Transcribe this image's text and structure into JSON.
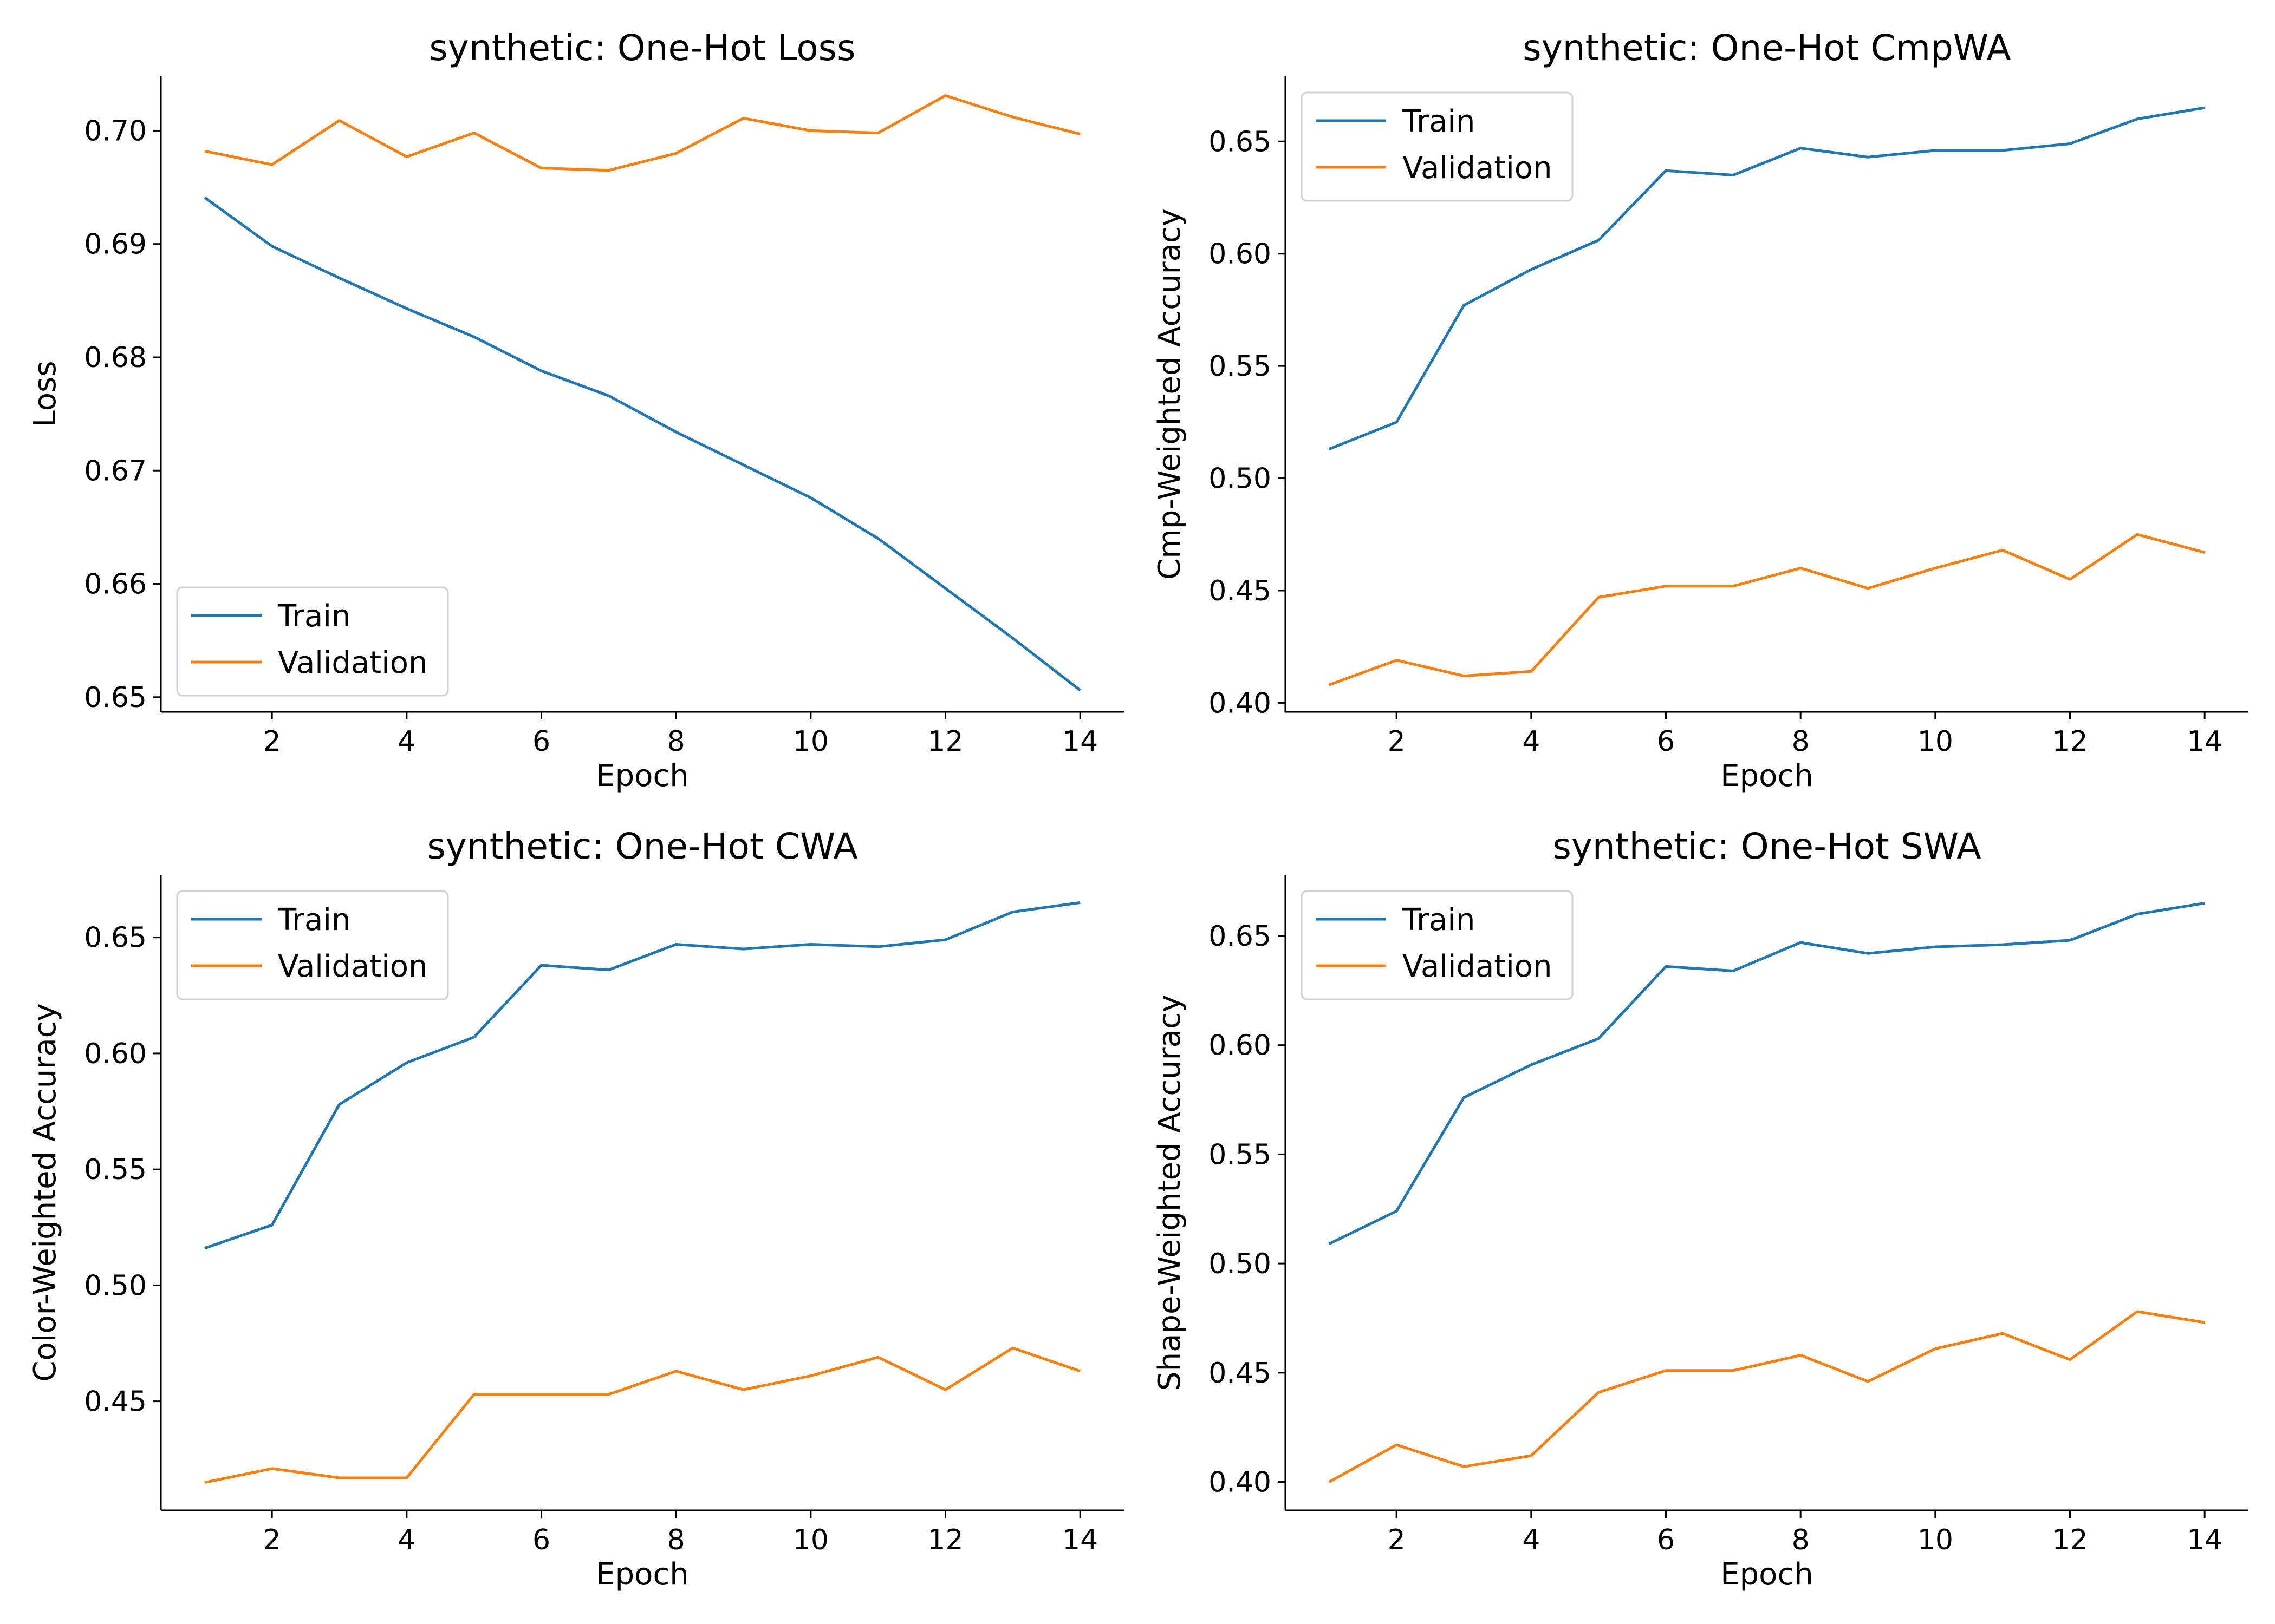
{
  "colors": {
    "train": "#1f77b4",
    "validation": "#ff7f0e"
  },
  "chart_data": [
    {
      "type": "line",
      "title": "synthetic: One-Hot Loss",
      "xlabel": "Epoch",
      "ylabel": "Loss",
      "x": [
        1,
        2,
        3,
        4,
        5,
        6,
        7,
        8,
        9,
        10,
        11,
        12,
        13,
        14
      ],
      "xlim": [
        0.35,
        14.65
      ],
      "ylim": [
        0.6487,
        0.7048
      ],
      "xticks": [
        2,
        4,
        6,
        8,
        10,
        12,
        14
      ],
      "xtick_labels": [
        "2",
        "4",
        "6",
        "8",
        "10",
        "12",
        "14"
      ],
      "yticks": [
        0.65,
        0.66,
        0.67,
        0.68,
        0.69,
        0.7
      ],
      "ytick_labels": [
        "0.65",
        "0.66",
        "0.67",
        "0.68",
        "0.69",
        "0.70"
      ],
      "legend_position": "lower-left",
      "series": [
        {
          "name": "Train",
          "color": "#1f77b4",
          "values": [
            0.6941,
            0.6898,
            0.687,
            0.6843,
            0.6818,
            0.6788,
            0.6766,
            0.6734,
            0.6705,
            0.6676,
            0.664,
            0.6596,
            0.6552,
            0.6506
          ]
        },
        {
          "name": "Validation",
          "color": "#ff7f0e",
          "values": [
            0.6982,
            0.697,
            0.7009,
            0.6977,
            0.6998,
            0.6967,
            0.6965,
            0.698,
            0.7011,
            0.7,
            0.6998,
            0.7031,
            0.7012,
            0.6997
          ]
        }
      ]
    },
    {
      "type": "line",
      "title": "synthetic: One-Hot CmpWA",
      "xlabel": "Epoch",
      "ylabel": "Cmp-Weighted Accuracy",
      "x": [
        1,
        2,
        3,
        4,
        5,
        6,
        7,
        8,
        9,
        10,
        11,
        12,
        13,
        14
      ],
      "xlim": [
        0.35,
        14.65
      ],
      "ylim": [
        0.396,
        0.679
      ],
      "xticks": [
        2,
        4,
        6,
        8,
        10,
        12,
        14
      ],
      "xtick_labels": [
        "2",
        "4",
        "6",
        "8",
        "10",
        "12",
        "14"
      ],
      "yticks": [
        0.4,
        0.45,
        0.5,
        0.55,
        0.6,
        0.65
      ],
      "ytick_labels": [
        "0.40",
        "0.45",
        "0.50",
        "0.55",
        "0.60",
        "0.65"
      ],
      "legend_position": "upper-left",
      "series": [
        {
          "name": "Train",
          "color": "#1f77b4",
          "values": [
            0.513,
            0.525,
            0.577,
            0.593,
            0.606,
            0.637,
            0.635,
            0.647,
            0.643,
            0.646,
            0.646,
            0.649,
            0.66,
            0.665
          ]
        },
        {
          "name": "Validation",
          "color": "#ff7f0e",
          "values": [
            0.408,
            0.419,
            0.412,
            0.414,
            0.447,
            0.452,
            0.452,
            0.46,
            0.451,
            0.46,
            0.468,
            0.455,
            0.475,
            0.467
          ]
        }
      ]
    },
    {
      "type": "line",
      "title": "synthetic: One-Hot CWA",
      "xlabel": "Epoch",
      "ylabel": "Color-Weighted Accuracy",
      "x": [
        1,
        2,
        3,
        4,
        5,
        6,
        7,
        8,
        9,
        10,
        11,
        12,
        13,
        14
      ],
      "xlim": [
        0.35,
        14.65
      ],
      "ylim": [
        0.403,
        0.677
      ],
      "xticks": [
        2,
        4,
        6,
        8,
        10,
        12,
        14
      ],
      "xtick_labels": [
        "2",
        "4",
        "6",
        "8",
        "10",
        "12",
        "14"
      ],
      "yticks": [
        0.45,
        0.5,
        0.55,
        0.6,
        0.65
      ],
      "ytick_labels": [
        "0.45",
        "0.50",
        "0.55",
        "0.60",
        "0.65"
      ],
      "legend_position": "upper-left",
      "series": [
        {
          "name": "Train",
          "color": "#1f77b4",
          "values": [
            0.516,
            0.526,
            0.578,
            0.596,
            0.607,
            0.638,
            0.636,
            0.647,
            0.645,
            0.647,
            0.646,
            0.649,
            0.661,
            0.665
          ]
        },
        {
          "name": "Validation",
          "color": "#ff7f0e",
          "values": [
            0.415,
            0.421,
            0.417,
            0.417,
            0.453,
            0.453,
            0.453,
            0.463,
            0.455,
            0.461,
            0.469,
            0.455,
            0.473,
            0.463
          ]
        }
      ]
    },
    {
      "type": "line",
      "title": "synthetic: One-Hot SWA",
      "xlabel": "Epoch",
      "ylabel": "Shape-Weighted Accuracy",
      "x": [
        1,
        2,
        3,
        4,
        5,
        6,
        7,
        8,
        9,
        10,
        11,
        12,
        13,
        14
      ],
      "xlim": [
        0.35,
        14.65
      ],
      "ylim": [
        0.387,
        0.678
      ],
      "xticks": [
        2,
        4,
        6,
        8,
        10,
        12,
        14
      ],
      "xtick_labels": [
        "2",
        "4",
        "6",
        "8",
        "10",
        "12",
        "14"
      ],
      "yticks": [
        0.4,
        0.45,
        0.5,
        0.55,
        0.6,
        0.65
      ],
      "ytick_labels": [
        "0.40",
        "0.45",
        "0.50",
        "0.55",
        "0.60",
        "0.65"
      ],
      "legend_position": "upper-left",
      "series": [
        {
          "name": "Train",
          "color": "#1f77b4",
          "values": [
            0.509,
            0.524,
            0.576,
            0.591,
            0.603,
            0.636,
            0.634,
            0.647,
            0.642,
            0.645,
            0.646,
            0.648,
            0.66,
            0.665
          ]
        },
        {
          "name": "Validation",
          "color": "#ff7f0e",
          "values": [
            0.4,
            0.417,
            0.407,
            0.412,
            0.441,
            0.451,
            0.451,
            0.458,
            0.446,
            0.461,
            0.468,
            0.456,
            0.478,
            0.473
          ]
        }
      ]
    }
  ]
}
